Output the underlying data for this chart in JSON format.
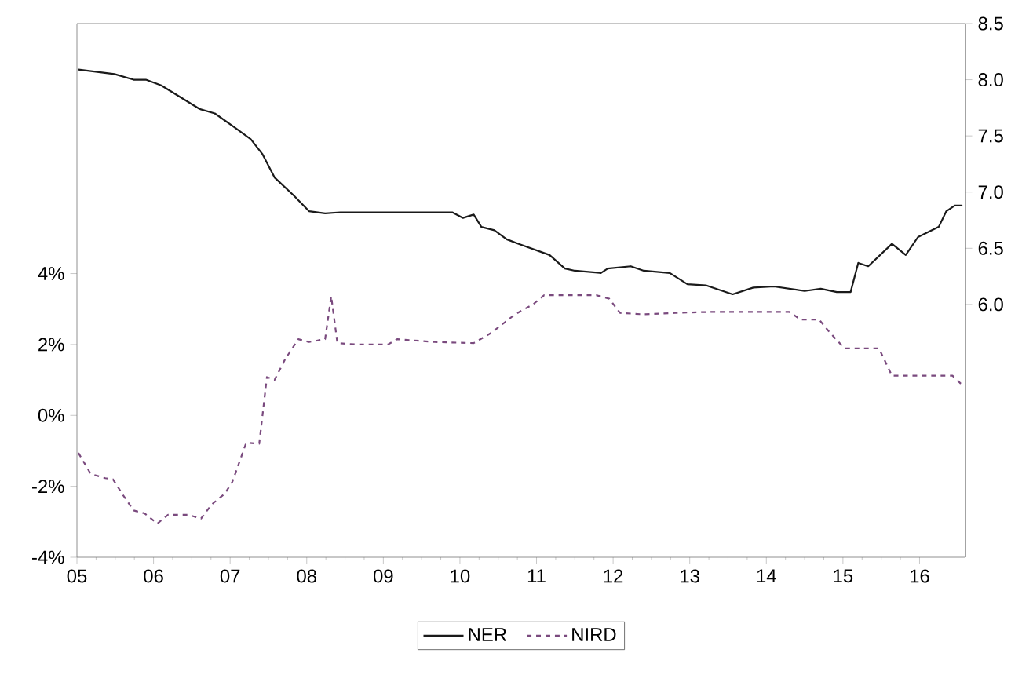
{
  "chart_data": {
    "type": "line",
    "legend": "bottom",
    "xlim": [
      2005,
      2016.6
    ],
    "xticks": [
      {
        "value": 2005,
        "label": "05"
      },
      {
        "value": 2006,
        "label": "06"
      },
      {
        "value": 2007,
        "label": "07"
      },
      {
        "value": 2008,
        "label": "08"
      },
      {
        "value": 2009,
        "label": "09"
      },
      {
        "value": 2010,
        "label": "10"
      },
      {
        "value": 2011,
        "label": "11"
      },
      {
        "value": 2012,
        "label": "12"
      },
      {
        "value": 2013,
        "label": "13"
      },
      {
        "value": 2014,
        "label": "14"
      },
      {
        "value": 2015,
        "label": "15"
      },
      {
        "value": 2016,
        "label": "16"
      }
    ],
    "ylim": [
      -4,
      11.05
    ],
    "yticks": [
      {
        "value": -4,
        "label": "-4%"
      },
      {
        "value": -2,
        "label": "-2%"
      },
      {
        "value": 0,
        "label": "0%"
      },
      {
        "value": 2,
        "label": "2%"
      },
      {
        "value": 4,
        "label": "4%"
      }
    ],
    "y2lim": [
      3.75,
      8.5
    ],
    "y2ticks": [
      {
        "value": 6,
        "label": "6.0"
      },
      {
        "value": 6.5,
        "label": "6.5"
      },
      {
        "value": 7,
        "label": "7.0"
      },
      {
        "value": 7.5,
        "label": "7.5"
      },
      {
        "value": 8,
        "label": "8.0"
      },
      {
        "value": 8.5,
        "label": "8.5"
      }
    ],
    "series": [
      {
        "name": "NER",
        "color": "#1a1a1a",
        "axis": "y2",
        "line_style": "solid",
        "x": [
          2005.02,
          2005.49,
          2005.74,
          2005.9,
          2006.1,
          2006.6,
          2006.8,
          2007.07,
          2007.27,
          2007.42,
          2007.58,
          2007.83,
          2008.03,
          2008.24,
          2008.44,
          2008.77,
          2009.9,
          2010.04,
          2010.18,
          2010.28,
          2010.45,
          2010.61,
          2010.76,
          2011.17,
          2011.37,
          2011.5,
          2011.84,
          2011.93,
          2012.23,
          2012.4,
          2012.74,
          2012.97,
          2013.21,
          2013.56,
          2013.83,
          2014.1,
          2014.5,
          2014.71,
          2014.92,
          2015.1,
          2015.2,
          2015.33,
          2015.64,
          2015.82,
          2015.98,
          2016.25,
          2016.35,
          2016.46,
          2016.56
        ],
        "values": [
          8.09,
          8.05,
          8.0,
          8.0,
          7.95,
          7.74,
          7.7,
          7.57,
          7.47,
          7.34,
          7.13,
          6.97,
          6.83,
          6.81,
          6.82,
          6.82,
          6.82,
          6.77,
          6.8,
          6.69,
          6.66,
          6.58,
          6.54,
          6.44,
          6.32,
          6.3,
          6.28,
          6.32,
          6.34,
          6.3,
          6.28,
          6.18,
          6.17,
          6.09,
          6.15,
          6.16,
          6.12,
          6.14,
          6.11,
          6.11,
          6.37,
          6.34,
          6.54,
          6.44,
          6.6,
          6.69,
          6.83,
          6.88,
          6.88
        ]
      },
      {
        "name": "NIRD",
        "color": "#7a4a7e",
        "line_style": "dashed",
        "x": [
          2005.02,
          2005.18,
          2005.37,
          2005.47,
          2005.6,
          2005.74,
          2005.88,
          2006.05,
          2006.19,
          2006.45,
          2006.62,
          2006.76,
          2006.93,
          2007.03,
          2007.21,
          2007.38,
          2007.48,
          2007.58,
          2007.72,
          2007.89,
          2008.03,
          2008.24,
          2008.32,
          2008.4,
          2008.65,
          2009.06,
          2009.18,
          2009.67,
          2010.18,
          2010.41,
          2010.72,
          2010.96,
          2011.1,
          2011.78,
          2011.95,
          2012.09,
          2012.4,
          2012.81,
          2013.28,
          2014.3,
          2014.45,
          2014.69,
          2014.82,
          2015.02,
          2015.47,
          2015.64,
          2016.43,
          2016.56
        ],
        "values": [
          -1.06,
          -1.65,
          -1.77,
          -1.8,
          -2.24,
          -2.68,
          -2.76,
          -3.05,
          -2.8,
          -2.8,
          -2.91,
          -2.51,
          -2.21,
          -1.87,
          -0.77,
          -0.8,
          1.08,
          1.0,
          1.59,
          2.15,
          2.07,
          2.15,
          3.36,
          2.04,
          2.0,
          2.0,
          2.15,
          2.07,
          2.04,
          2.33,
          2.85,
          3.14,
          3.39,
          3.39,
          3.29,
          2.89,
          2.85,
          2.89,
          2.92,
          2.92,
          2.7,
          2.7,
          2.36,
          1.89,
          1.89,
          1.12,
          1.12,
          0.85
        ]
      }
    ]
  }
}
